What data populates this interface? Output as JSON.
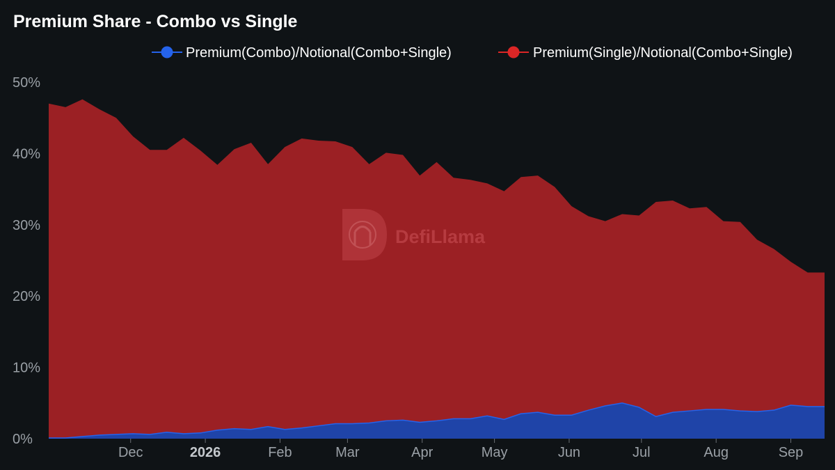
{
  "title": "Premium Share - Combo vs Single",
  "watermark": "DefiLlama",
  "colors": {
    "background": "#0f1316",
    "combo": "#2563eb",
    "combo_fill": "#1f44a8",
    "single": "#dc2626",
    "single_fill": "#9b2024"
  },
  "chart_data": {
    "type": "area",
    "stacked": true,
    "title": "Premium Share - Combo vs Single",
    "legend_position": "top-right",
    "grid": false,
    "ylim": [
      0,
      50
    ],
    "yticks": [
      "0%",
      "10%",
      "20%",
      "30%",
      "40%",
      "50%"
    ],
    "xrange": [
      "2025-10-28",
      "2026-09-15"
    ],
    "xticks": [
      {
        "label": "Dec",
        "date": "2025-12-01",
        "bold": false
      },
      {
        "label": "2026",
        "date": "2026-01-01",
        "bold": true
      },
      {
        "label": "Feb",
        "date": "2026-02-01",
        "bold": false
      },
      {
        "label": "Mar",
        "date": "2026-03-01",
        "bold": false
      },
      {
        "label": "Apr",
        "date": "2026-04-01",
        "bold": false
      },
      {
        "label": "May",
        "date": "2026-05-01",
        "bold": false
      },
      {
        "label": "Jun",
        "date": "2026-06-01",
        "bold": false
      },
      {
        "label": "Jul",
        "date": "2026-07-01",
        "bold": false
      },
      {
        "label": "Aug",
        "date": "2026-08-01",
        "bold": false
      },
      {
        "label": "Sep",
        "date": "2026-09-01",
        "bold": false
      }
    ],
    "x": [
      "2025-10-28",
      "2025-11-04",
      "2025-11-11",
      "2025-11-18",
      "2025-11-25",
      "2025-12-02",
      "2025-12-09",
      "2025-12-16",
      "2025-12-23",
      "2025-12-30",
      "2026-01-06",
      "2026-01-13",
      "2026-01-20",
      "2026-01-27",
      "2026-02-03",
      "2026-02-10",
      "2026-02-17",
      "2026-02-24",
      "2026-03-03",
      "2026-03-10",
      "2026-03-17",
      "2026-03-24",
      "2026-03-31",
      "2026-04-07",
      "2026-04-14",
      "2026-04-21",
      "2026-04-28",
      "2026-05-05",
      "2026-05-12",
      "2026-05-19",
      "2026-05-26",
      "2026-06-02",
      "2026-06-09",
      "2026-06-16",
      "2026-06-23",
      "2026-06-30",
      "2026-07-07",
      "2026-07-14",
      "2026-07-21",
      "2026-07-28",
      "2026-08-04",
      "2026-08-11",
      "2026-08-18",
      "2026-08-25",
      "2026-09-01",
      "2026-09-08",
      "2026-09-15"
    ],
    "series": [
      {
        "name": "Premium(Combo)/Notional(Combo+Single)",
        "color": "#2563eb",
        "values": [
          0.1,
          0.1,
          0.3,
          0.5,
          0.6,
          0.7,
          0.6,
          0.9,
          0.7,
          0.8,
          1.2,
          1.4,
          1.3,
          1.7,
          1.3,
          1.5,
          1.8,
          2.1,
          2.1,
          2.2,
          2.5,
          2.6,
          2.3,
          2.5,
          2.8,
          2.8,
          3.2,
          2.7,
          3.5,
          3.7,
          3.3,
          3.3,
          4.0,
          4.6,
          5.0,
          4.4,
          3.1,
          3.7,
          3.9,
          4.1,
          4.1,
          3.9,
          3.8,
          4.0,
          4.7,
          4.5,
          4.5
        ]
      },
      {
        "name": "Premium(Single)/Notional(Combo+Single)",
        "color": "#dc2626",
        "values": [
          46.9,
          46.4,
          47.3,
          45.7,
          44.4,
          41.7,
          39.9,
          39.6,
          41.5,
          39.6,
          37.2,
          39.2,
          40.2,
          36.8,
          39.6,
          40.6,
          40.0,
          39.6,
          38.8,
          36.3,
          37.6,
          37.2,
          34.6,
          36.3,
          33.8,
          33.5,
          32.6,
          32.0,
          33.2,
          33.2,
          32.0,
          29.3,
          27.2,
          25.9,
          26.5,
          26.9,
          30.1,
          29.7,
          28.4,
          28.4,
          26.4,
          26.5,
          24.1,
          22.6,
          20.1,
          18.8,
          18.8
        ]
      }
    ]
  }
}
